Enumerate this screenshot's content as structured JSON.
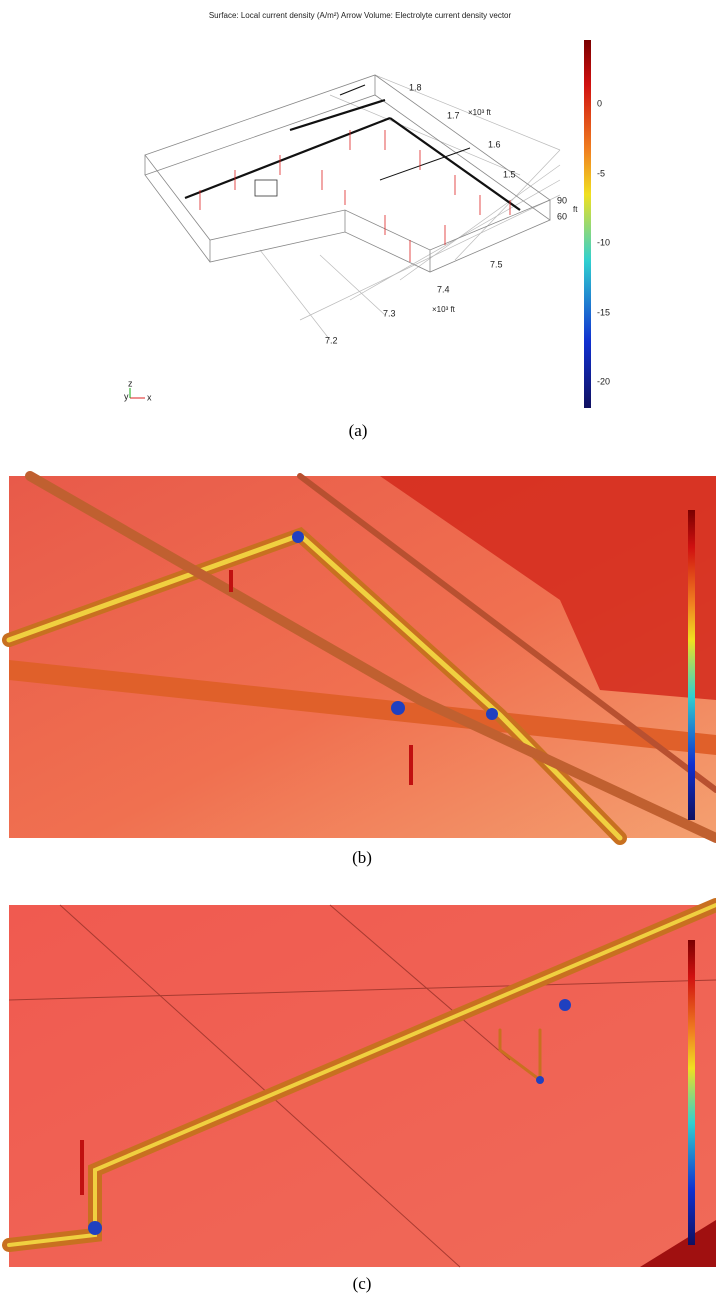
{
  "panel_a": {
    "title": "Surface: Local current density (A/m²)  Arrow Volume: Electrolyte current density vector",
    "colorbar_ticks": [
      0,
      -5,
      -10,
      -15,
      -20
    ],
    "y_ticks": [
      1.8,
      1.7,
      1.6,
      1.5
    ],
    "y_unit": "×10³ ft",
    "z_ticks": [
      90,
      60
    ],
    "z_unit": "ft",
    "x_ticks": [
      7.5,
      7.4,
      7.3,
      7.2
    ],
    "x_unit": "×10³ ft",
    "triad": [
      "y",
      "z",
      "x"
    ]
  },
  "captions": [
    "(a)",
    "(b)",
    "(c)"
  ]
}
